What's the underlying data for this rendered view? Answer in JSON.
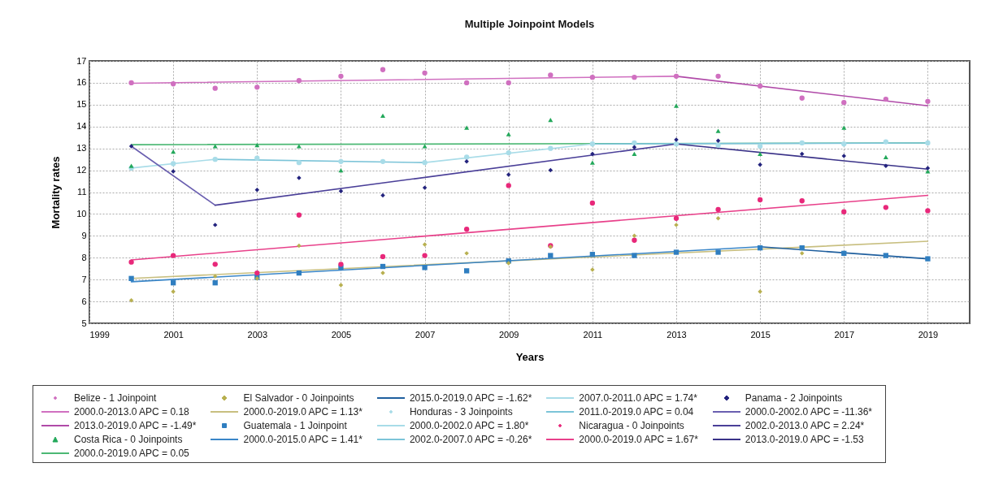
{
  "chart_data": {
    "type": "scatter",
    "title": "Multiple Joinpoint Models",
    "xlabel": "Years",
    "ylabel": "Mortality rates",
    "x": [
      2000,
      2001,
      2002,
      2003,
      2004,
      2005,
      2006,
      2007,
      2008,
      2009,
      2010,
      2011,
      2012,
      2013,
      2014,
      2015,
      2016,
      2017,
      2018,
      2019
    ],
    "xlim": [
      1999,
      2020
    ],
    "xticks": [
      1999,
      2001,
      2003,
      2005,
      2007,
      2009,
      2011,
      2013,
      2015,
      2017,
      2019
    ],
    "ylim": [
      5,
      17
    ],
    "yticks": [
      5,
      6,
      7,
      8,
      9,
      10,
      11,
      12,
      13,
      14,
      15,
      16,
      17
    ],
    "grid": true,
    "legend": "bottom",
    "series": [
      {
        "name": "Belize - 1 Joinpoint",
        "marker": "circle",
        "color": "#d070c0",
        "values": [
          16.0,
          15.95,
          15.75,
          15.8,
          16.1,
          16.3,
          16.6,
          16.45,
          16.0,
          16.0,
          16.35,
          16.25,
          16.25,
          16.3,
          16.3,
          15.85,
          15.3,
          15.1,
          15.25,
          15.15
        ]
      },
      {
        "name": "2000.0-2013.0 APC = 0.18",
        "type": "line",
        "color": "#d070c0",
        "x": [
          2000,
          2013
        ],
        "values": [
          15.98,
          16.3
        ]
      },
      {
        "name": "2013.0-2019.0 APC = -1.49*",
        "type": "line",
        "color": "#b04aa8",
        "x": [
          2013,
          2019
        ],
        "values": [
          16.3,
          14.95
        ]
      },
      {
        "name": "Costa Rica - 0 Joinpoints",
        "marker": "triangle",
        "color": "#22a85a",
        "values": [
          12.2,
          12.85,
          13.1,
          13.15,
          13.1,
          12.0,
          14.5,
          13.1,
          13.95,
          13.65,
          14.3,
          12.35,
          12.75,
          14.95,
          13.8,
          12.75,
          null,
          13.95,
          12.6,
          11.95
        ]
      },
      {
        "name": "2000.0-2019.0 APC = 0.05",
        "type": "line",
        "color": "#4cb874",
        "x": [
          2000,
          2019
        ],
        "values": [
          13.17,
          13.25
        ]
      },
      {
        "name": "El Salvador - 0 Joinpoints",
        "marker": "diamond",
        "color": "#b8b050",
        "values": [
          6.05,
          6.45,
          7.15,
          7.05,
          8.55,
          6.75,
          7.3,
          8.6,
          8.2,
          7.75,
          8.5,
          7.45,
          9.0,
          9.5,
          9.8,
          6.45,
          8.2,
          null,
          null,
          null
        ]
      },
      {
        "name": "2000.0-2019.0 APC = 1.13*",
        "type": "line",
        "color": "#c8bf80",
        "x": [
          2000,
          2019
        ],
        "values": [
          7.05,
          8.75
        ]
      },
      {
        "name": "Guatemala - 1 Joinpoint",
        "marker": "square",
        "color": "#2f7ec0",
        "values": [
          7.05,
          6.85,
          6.85,
          7.1,
          7.3,
          7.55,
          7.6,
          7.55,
          7.4,
          7.85,
          8.1,
          8.15,
          8.1,
          8.25,
          8.25,
          8.45,
          8.45,
          8.2,
          8.1,
          7.95
        ]
      },
      {
        "name": "2000.0-2015.0 APC = 1.41*",
        "type": "line",
        "color": "#3a86c8",
        "x": [
          2000,
          2015
        ],
        "values": [
          6.9,
          8.5
        ]
      },
      {
        "name": "2015.0-2019.0 APC = -1.62*",
        "type": "line",
        "color": "#1f5f9e",
        "x": [
          2015,
          2019
        ],
        "values": [
          8.5,
          7.95
        ]
      },
      {
        "name": "Honduras - 3 Joinpoints",
        "marker": "circle",
        "color": "#a8dce8",
        "values": [
          12.1,
          12.3,
          12.5,
          12.55,
          12.35,
          12.4,
          12.4,
          12.35,
          12.6,
          12.8,
          13.0,
          13.2,
          13.25,
          13.2,
          13.15,
          13.1,
          13.25,
          13.2,
          13.3,
          13.25
        ]
      },
      {
        "name": "2000.0-2002.0 APC = 1.80*",
        "type": "line",
        "color": "#a8dce8",
        "x": [
          2000,
          2002
        ],
        "values": [
          12.1,
          12.5
        ]
      },
      {
        "name": "2002.0-2007.0 APC = -0.26*",
        "type": "line",
        "color": "#7cc4d8",
        "x": [
          2002,
          2007
        ],
        "values": [
          12.5,
          12.35
        ]
      },
      {
        "name": "2007.0-2011.0 APC = 1.74*",
        "type": "line",
        "color": "#a8dce8",
        "x": [
          2007,
          2011
        ],
        "values": [
          12.35,
          13.2
        ]
      },
      {
        "name": "2011.0-2019.0 APC = 0.04",
        "type": "line",
        "color": "#7cc4d8",
        "x": [
          2011,
          2019
        ],
        "values": [
          13.2,
          13.25
        ]
      },
      {
        "name": "Nicaragua - 0 Joinpoints",
        "marker": "circle",
        "color": "#e8287a",
        "values": [
          7.8,
          8.1,
          7.7,
          7.3,
          9.95,
          7.7,
          8.05,
          8.1,
          9.3,
          11.3,
          8.55,
          10.5,
          8.8,
          9.8,
          10.2,
          10.65,
          10.6,
          10.1,
          10.3,
          10.15
        ]
      },
      {
        "name": "2000.0-2019.0 APC = 1.67*",
        "type": "line",
        "color": "#e8408a",
        "x": [
          2000,
          2019
        ],
        "values": [
          7.9,
          10.85
        ]
      },
      {
        "name": "Panama - 2 Joinpoints",
        "marker": "diamond",
        "color": "#23237e",
        "values": [
          13.1,
          11.95,
          9.5,
          11.1,
          11.65,
          11.05,
          10.85,
          11.2,
          12.4,
          11.8,
          12.0,
          12.75,
          13.05,
          13.4,
          13.35,
          12.25,
          12.75,
          12.65,
          12.2,
          12.1
        ]
      },
      {
        "name": "2000.0-2002.0 APC = -11.36*",
        "type": "line",
        "color": "#6a5fb0",
        "x": [
          2000,
          2002
        ],
        "values": [
          13.1,
          10.4
        ]
      },
      {
        "name": "2002.0-2013.0 APC = 2.24*",
        "type": "line",
        "color": "#4a3f98",
        "x": [
          2002,
          2013
        ],
        "values": [
          10.4,
          13.2
        ]
      },
      {
        "name": "2013.0-2019.0 APC = -1.53",
        "type": "line",
        "color": "#3a3288",
        "x": [
          2013,
          2019
        ],
        "values": [
          13.2,
          12.05
        ]
      }
    ]
  }
}
